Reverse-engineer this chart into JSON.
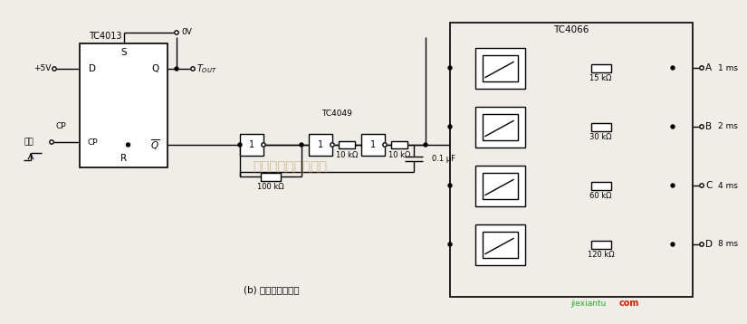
{
  "bg_color": "#f0ede8",
  "line_color": "#000000",
  "title": "(b) 可编程定时电路",
  "tc4013_label": "TC4013",
  "tc4066_label": "TC4066",
  "tc4049_label": "TC4049",
  "watermark_text": "杭州维库电子市场网",
  "watermark2": "jiexiantu",
  "green_color": "#22aa22",
  "red_color": "#cc2200",
  "channels": [
    {
      "label_r": "15 kΩ",
      "out": "A",
      "ms": "1 ms"
    },
    {
      "label_r": "30 kΩ",
      "out": "B",
      "ms": "2 ms"
    },
    {
      "label_r": "60 kΩ",
      "out": "C",
      "ms": "4 ms"
    },
    {
      "label_r": "120 kΩ",
      "out": "D",
      "ms": "8 ms"
    }
  ]
}
